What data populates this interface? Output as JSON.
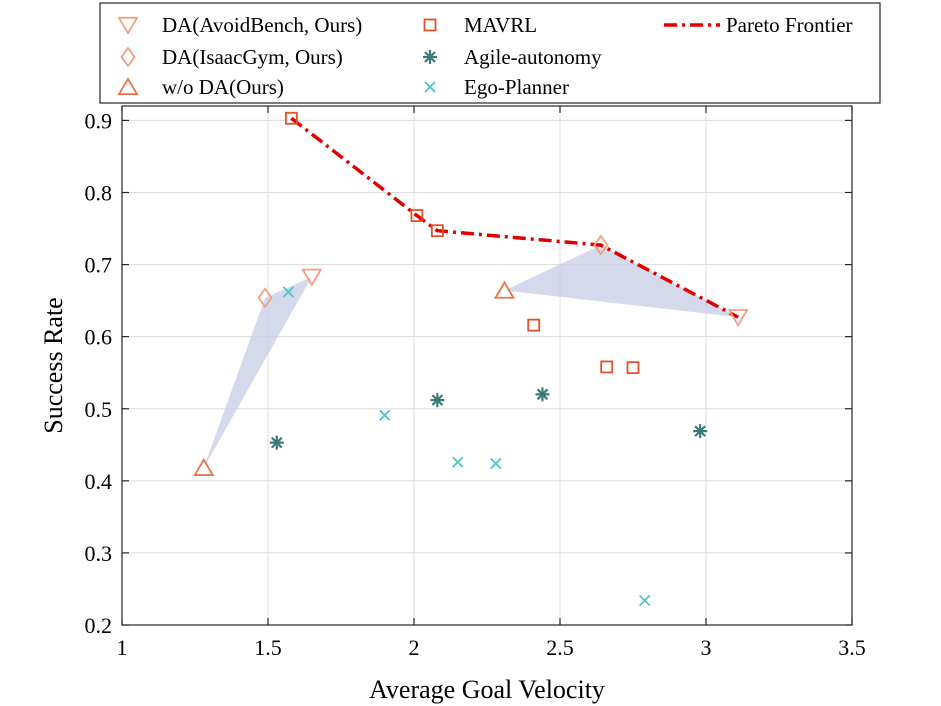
{
  "chart_data": {
    "type": "scatter",
    "xlabel": "Average Goal Velocity",
    "ylabel": "Success Rate",
    "xlim": [
      1,
      3.5
    ],
    "ylim": [
      0.2,
      0.92
    ],
    "xticks": [
      1,
      1.5,
      2,
      2.5,
      3,
      3.5
    ],
    "xtick_labels": [
      "1",
      "1.5",
      "2",
      "2.5",
      "3",
      "3.5"
    ],
    "yticks": [
      0.2,
      0.3,
      0.4,
      0.5,
      0.6,
      0.7,
      0.8,
      0.9
    ],
    "ytick_labels": [
      "0.2",
      "0.3",
      "0.4",
      "0.5",
      "0.6",
      "0.7",
      "0.8",
      "0.9"
    ],
    "grid": true,
    "legend_position": "top",
    "series": [
      {
        "name": "DA(AvoidBench, Ours)",
        "marker": "triangle-down",
        "color": "#f0a080",
        "x": [
          1.65,
          3.11
        ],
        "y": [
          0.683,
          0.627
        ]
      },
      {
        "name": "DA(IsaacGym, Ours)",
        "marker": "diamond",
        "color": "#f0a080",
        "x": [
          1.49,
          2.64
        ],
        "y": [
          0.654,
          0.727
        ]
      },
      {
        "name": "w/o DA(Ours)",
        "marker": "triangle-up",
        "color": "#e8734a",
        "x": [
          1.28,
          2.31
        ],
        "y": [
          0.418,
          0.664
        ]
      },
      {
        "name": "MAVRL",
        "marker": "square",
        "color": "#e0502a",
        "x": [
          1.58,
          2.01,
          2.08,
          2.41,
          2.66,
          2.75
        ],
        "y": [
          0.903,
          0.768,
          0.747,
          0.616,
          0.558,
          0.557
        ]
      },
      {
        "name": "Agile-autonomy",
        "marker": "asterisk",
        "color": "#3a7a7a",
        "x": [
          1.53,
          2.08,
          2.44,
          2.98
        ],
        "y": [
          0.453,
          0.512,
          0.52,
          0.469
        ]
      },
      {
        "name": "Ego-Planner",
        "marker": "x",
        "color": "#4ac6c6",
        "x": [
          1.57,
          1.9,
          2.15,
          2.28,
          2.79
        ],
        "y": [
          0.662,
          0.491,
          0.426,
          0.424,
          0.234
        ]
      }
    ],
    "pareto_frontier": {
      "name": "Pareto Frontier",
      "color": "#e00000",
      "x": [
        1.58,
        2.01,
        2.08,
        2.64,
        3.11
      ],
      "y": [
        0.903,
        0.768,
        0.747,
        0.727,
        0.627
      ]
    },
    "shaded_regions": [
      {
        "color": "#c8d0e6",
        "x": [
          1.28,
          1.49,
          1.65
        ],
        "y": [
          0.418,
          0.654,
          0.683
        ]
      },
      {
        "color": "#c8d0e6",
        "x": [
          2.31,
          2.64,
          3.11
        ],
        "y": [
          0.664,
          0.727,
          0.627
        ]
      }
    ],
    "legend_columns": [
      [
        "DA(AvoidBench, Ours)",
        "DA(IsaacGym, Ours)",
        "w/o DA(Ours)"
      ],
      [
        "MAVRL",
        "Agile-autonomy",
        "Ego-Planner"
      ],
      [
        "Pareto Frontier"
      ]
    ]
  }
}
